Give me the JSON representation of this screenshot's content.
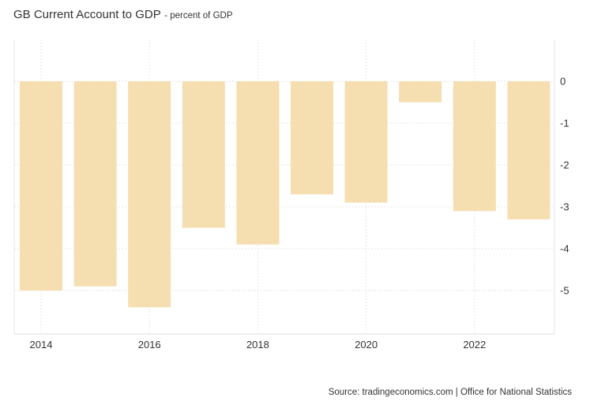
{
  "title": "GB Current Account to GDP",
  "subtitle": "- percent of GDP",
  "source": "Source: tradingeconomics.com | Office for National Statistics",
  "colors": {
    "bar": "#f5deb0",
    "grid": "#e6e6e6",
    "text": "#333333",
    "frame": "#dddddd"
  },
  "chart_data": {
    "type": "bar",
    "title": "GB Current Account to GDP",
    "subtitle": "- percent of GDP",
    "x": [
      2014,
      2015,
      2016,
      2017,
      2018,
      2019,
      2020,
      2021,
      2022,
      2023
    ],
    "values": [
      -5.0,
      -4.9,
      -5.4,
      -3.5,
      -3.9,
      -2.7,
      -2.9,
      -0.5,
      -3.1,
      -3.3
    ],
    "x_tick_labels": [
      "2014",
      "2016",
      "2018",
      "2020",
      "2022"
    ],
    "y_tick_labels": [
      "0",
      "-1",
      "-2",
      "-3",
      "-4",
      "-5"
    ],
    "y_ticks": [
      0,
      -1,
      -2,
      -3,
      -4,
      -5
    ],
    "ylim": [
      -6,
      1
    ],
    "y_axis_side": "right",
    "grid": true,
    "legend": "none"
  }
}
